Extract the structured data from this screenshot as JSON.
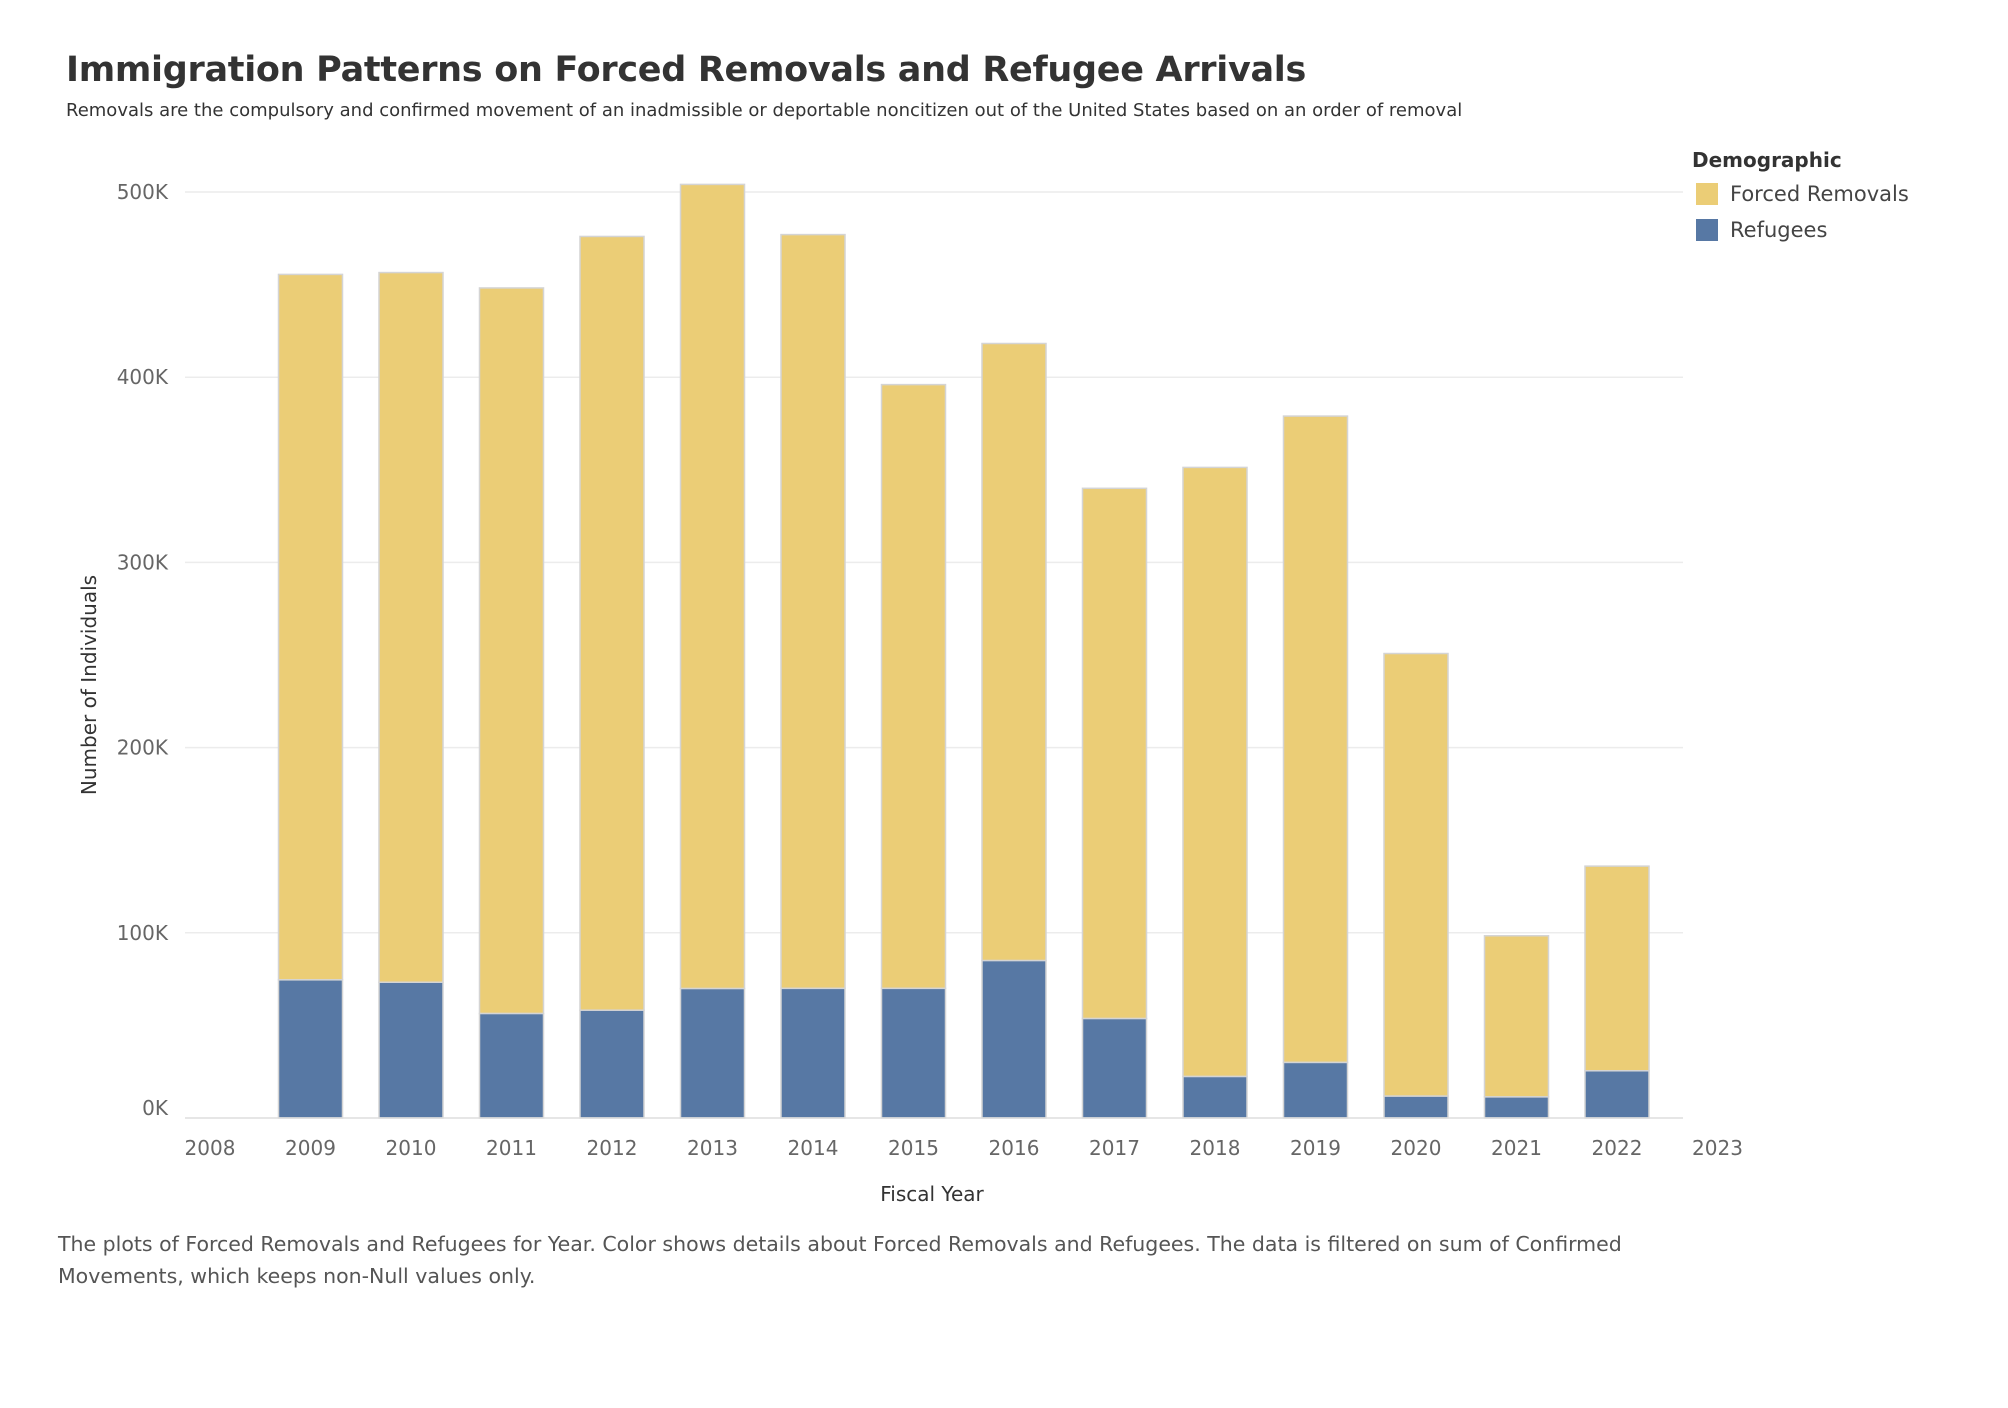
{
  "header": {
    "title": "Immigration Patterns on Forced Removals and Refugee Arrivals",
    "subtitle": "Removals are the compulsory and confirmed movement of an inadmissible or deportable noncitizen out of the United States based on an order of removal"
  },
  "legend": {
    "title": "Demographic",
    "items": [
      {
        "label": "Forced Removals",
        "color": "#EBCD76"
      },
      {
        "label": "Refugees",
        "color": "#5778A4"
      }
    ]
  },
  "caption": "The plots of Forced Removals and Refugees for Year.  Color shows details about Forced Removals and Refugees. The data is filtered on sum of Confirmed Movements, which keeps non-Null values only.",
  "chart_data": {
    "type": "bar",
    "stacked": true,
    "title": "Immigration Patterns on Forced Removals and Refugee Arrivals",
    "xlabel": "Fiscal Year",
    "ylabel": "Number of Individuals",
    "x_ticks": [
      "2008",
      "2009",
      "2010",
      "2011",
      "2012",
      "2013",
      "2014",
      "2015",
      "2016",
      "2017",
      "2018",
      "2019",
      "2020",
      "2021",
      "2022",
      "2023"
    ],
    "categories": [
      "2009",
      "2010",
      "2011",
      "2012",
      "2013",
      "2014",
      "2015",
      "2016",
      "2017",
      "2018",
      "2019",
      "2020",
      "2021",
      "2022"
    ],
    "ylim": [
      0,
      500000
    ],
    "y_ticks": [
      0,
      100000,
      200000,
      300000,
      400000,
      500000
    ],
    "y_tick_labels": [
      "0K",
      "100K",
      "200K",
      "300K",
      "400K",
      "500K"
    ],
    "grid": true,
    "legend_position": "top-right",
    "series": [
      {
        "name": "Refugees",
        "color": "#5778A4",
        "values": [
          74600,
          73300,
          56400,
          58200,
          69900,
          70000,
          70000,
          85000,
          53700,
          22400,
          30000,
          11800,
          11400,
          25500
        ]
      },
      {
        "name": "Forced Removals",
        "color": "#EBCD76",
        "values": [
          380900,
          383200,
          391800,
          417800,
          434200,
          407000,
          326000,
          333200,
          286300,
          328900,
          349000,
          239000,
          87000,
          110500
        ]
      }
    ]
  }
}
